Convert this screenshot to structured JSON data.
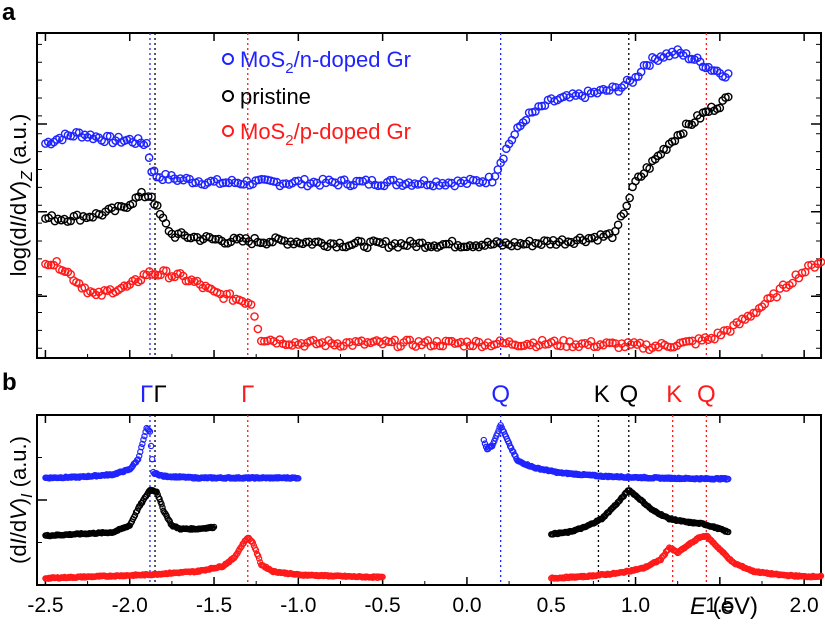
{
  "panels": {
    "a": {
      "label": "a"
    },
    "b": {
      "label": "b"
    }
  },
  "x_axis": {
    "label_italic": "E",
    "label_rest": " (eV)",
    "range": [
      -2.55,
      2.1
    ],
    "ticks": [
      -2.5,
      -2.0,
      -1.5,
      -1.0,
      -0.5,
      0.0,
      0.5,
      1.0,
      1.5,
      2.0
    ],
    "tick_labels": [
      "-2.5",
      "-2.0",
      "-1.5",
      "-1.0",
      "-0.5",
      "0.0",
      "0.5",
      "1.0",
      "1.5",
      "2.0"
    ]
  },
  "colors": {
    "n_doped": "#1f24ff",
    "pristine": "#000000",
    "p_doped": "#ff1a1a"
  },
  "chart_data": [
    {
      "type": "scatter",
      "panel": "a",
      "ylabel": "log(d/ / dV)Z (a.u.)",
      "ylabel_parts": [
        "log(d",
        "I",
        "/d",
        "V",
        ")",
        "Z",
        " (a.u.)"
      ],
      "yscale": "log",
      "ylim": [
        0,
        10
      ],
      "series": [
        {
          "name": "MoS2/n-doped Gr",
          "color": "#1f24ff",
          "points": [
            [
              -2.5,
              6.6
            ],
            [
              -2.4,
              6.8
            ],
            [
              -2.3,
              6.9
            ],
            [
              -2.2,
              6.8
            ],
            [
              -2.1,
              6.7
            ],
            [
              -2.0,
              6.7
            ],
            [
              -1.9,
              6.6
            ],
            [
              -1.87,
              5.8
            ],
            [
              -1.84,
              5.6
            ],
            [
              -1.7,
              5.5
            ],
            [
              -1.5,
              5.4
            ],
            [
              -1.2,
              5.4
            ],
            [
              -0.8,
              5.4
            ],
            [
              -0.4,
              5.4
            ],
            [
              0.0,
              5.4
            ],
            [
              0.15,
              5.5
            ],
            [
              0.25,
              6.6
            ],
            [
              0.35,
              7.4
            ],
            [
              0.5,
              7.9
            ],
            [
              0.7,
              8.1
            ],
            [
              0.9,
              8.3
            ],
            [
              1.0,
              8.6
            ],
            [
              1.05,
              9.0
            ],
            [
              1.15,
              9.3
            ],
            [
              1.25,
              9.4
            ],
            [
              1.35,
              9.2
            ],
            [
              1.45,
              8.9
            ],
            [
              1.55,
              8.7
            ]
          ]
        },
        {
          "name": "pristine",
          "color": "#000000",
          "points": [
            [
              -2.5,
              4.3
            ],
            [
              -2.35,
              4.3
            ],
            [
              -2.2,
              4.4
            ],
            [
              -2.05,
              4.6
            ],
            [
              -1.93,
              5.0
            ],
            [
              -1.87,
              5.0
            ],
            [
              -1.82,
              4.4
            ],
            [
              -1.75,
              3.8
            ],
            [
              -1.6,
              3.7
            ],
            [
              -1.4,
              3.6
            ],
            [
              -1.1,
              3.6
            ],
            [
              -0.7,
              3.5
            ],
            [
              -0.3,
              3.5
            ],
            [
              0.0,
              3.5
            ],
            [
              0.3,
              3.5
            ],
            [
              0.6,
              3.6
            ],
            [
              0.88,
              3.8
            ],
            [
              0.93,
              4.5
            ],
            [
              1.0,
              5.4
            ],
            [
              1.1,
              6.0
            ],
            [
              1.2,
              6.6
            ],
            [
              1.3,
              7.1
            ],
            [
              1.4,
              7.5
            ],
            [
              1.5,
              7.8
            ],
            [
              1.55,
              8.0
            ]
          ]
        },
        {
          "name": "MoS2/p-doped Gr",
          "color": "#ff1a1a",
          "points": [
            [
              -2.5,
              3.0
            ],
            [
              -2.4,
              2.8
            ],
            [
              -2.3,
              2.3
            ],
            [
              -2.2,
              1.9
            ],
            [
              -2.1,
              2.1
            ],
            [
              -2.0,
              2.2
            ],
            [
              -1.9,
              2.6
            ],
            [
              -1.8,
              2.6
            ],
            [
              -1.7,
              2.5
            ],
            [
              -1.6,
              2.3
            ],
            [
              -1.5,
              2.0
            ],
            [
              -1.35,
              1.8
            ],
            [
              -1.28,
              1.7
            ],
            [
              -1.22,
              0.6
            ],
            [
              -1.0,
              0.45
            ],
            [
              -0.5,
              0.45
            ],
            [
              0.0,
              0.45
            ],
            [
              0.5,
              0.45
            ],
            [
              0.9,
              0.4
            ],
            [
              1.1,
              0.35
            ],
            [
              1.3,
              0.45
            ],
            [
              1.45,
              0.6
            ],
            [
              1.6,
              1.0
            ],
            [
              1.7,
              1.4
            ],
            [
              1.8,
              1.8
            ],
            [
              1.95,
              2.5
            ],
            [
              2.1,
              3.0
            ]
          ]
        }
      ],
      "reference_lines": [
        {
          "x": -1.88,
          "color": "#1f24ff"
        },
        {
          "x": -1.85,
          "color": "#000000"
        },
        {
          "x": -1.3,
          "color": "#ff1a1a"
        },
        {
          "x": 0.2,
          "color": "#1f24ff"
        },
        {
          "x": 0.96,
          "color": "#000000"
        },
        {
          "x": 1.42,
          "color": "#ff1a1a"
        }
      ]
    },
    {
      "type": "scatter",
      "panel": "b",
      "ylabel": "(d/ / dV)I (a.u.)",
      "ylabel_parts": [
        "(d",
        "I",
        "/d",
        "V",
        ")",
        "I",
        " (a.u.)"
      ],
      "ylim": [
        0,
        10
      ],
      "series": [
        {
          "name": "MoS2/n-doped Gr",
          "color": "#1f24ff",
          "segments": [
            [
              [
                -2.5,
                6.3
              ],
              [
                -2.3,
                6.35
              ],
              [
                -2.1,
                6.5
              ],
              [
                -2.0,
                6.8
              ],
              [
                -1.95,
                7.4
              ],
              [
                -1.9,
                9.2
              ],
              [
                -1.88,
                9.0
              ],
              [
                -1.86,
                6.6
              ],
              [
                -1.8,
                6.4
              ],
              [
                -1.6,
                6.3
              ],
              [
                -1.3,
                6.3
              ],
              [
                -1.0,
                6.3
              ]
            ],
            [
              [
                0.1,
                8.5
              ],
              [
                0.12,
                8.0
              ],
              [
                0.15,
                8.2
              ],
              [
                0.2,
                9.4
              ],
              [
                0.25,
                8.3
              ],
              [
                0.3,
                7.3
              ],
              [
                0.4,
                6.9
              ],
              [
                0.55,
                6.6
              ],
              [
                0.8,
                6.4
              ],
              [
                1.1,
                6.3
              ],
              [
                1.4,
                6.25
              ],
              [
                1.55,
                6.25
              ]
            ]
          ]
        },
        {
          "name": "pristine",
          "color": "#000000",
          "segments": [
            [
              [
                -2.5,
                2.9
              ],
              [
                -2.3,
                3.0
              ],
              [
                -2.1,
                3.1
              ],
              [
                -2.0,
                3.5
              ],
              [
                -1.95,
                4.5
              ],
              [
                -1.88,
                5.6
              ],
              [
                -1.84,
                5.5
              ],
              [
                -1.8,
                4.4
              ],
              [
                -1.75,
                3.5
              ],
              [
                -1.7,
                3.3
              ],
              [
                -1.6,
                3.3
              ],
              [
                -1.5,
                3.4
              ]
            ],
            [
              [
                0.5,
                3.0
              ],
              [
                0.6,
                3.1
              ],
              [
                0.7,
                3.4
              ],
              [
                0.8,
                3.9
              ],
              [
                0.9,
                4.9
              ],
              [
                0.96,
                5.6
              ],
              [
                1.02,
                5.1
              ],
              [
                1.1,
                4.4
              ],
              [
                1.2,
                3.9
              ],
              [
                1.3,
                3.7
              ],
              [
                1.4,
                3.6
              ],
              [
                1.5,
                3.3
              ],
              [
                1.55,
                3.1
              ]
            ]
          ]
        },
        {
          "name": "MoS2/p-doped Gr",
          "color": "#ff1a1a",
          "segments": [
            [
              [
                -2.5,
                0.4
              ],
              [
                -2.2,
                0.5
              ],
              [
                -1.9,
                0.6
              ],
              [
                -1.6,
                0.8
              ],
              [
                -1.45,
                1.1
              ],
              [
                -1.38,
                1.6
              ],
              [
                -1.33,
                2.4
              ],
              [
                -1.3,
                2.8
              ],
              [
                -1.27,
                2.5
              ],
              [
                -1.22,
                1.2
              ],
              [
                -1.15,
                0.8
              ],
              [
                -1.0,
                0.6
              ],
              [
                -0.7,
                0.5
              ],
              [
                -0.5,
                0.45
              ]
            ],
            [
              [
                0.5,
                0.4
              ],
              [
                0.7,
                0.5
              ],
              [
                0.9,
                0.7
              ],
              [
                1.05,
                1.0
              ],
              [
                1.15,
                1.5
              ],
              [
                1.2,
                2.2
              ],
              [
                1.25,
                1.9
              ],
              [
                1.32,
                2.4
              ],
              [
                1.38,
                2.8
              ],
              [
                1.42,
                2.9
              ],
              [
                1.48,
                2.3
              ],
              [
                1.58,
                1.3
              ],
              [
                1.7,
                0.8
              ],
              [
                1.85,
                0.6
              ],
              [
                2.0,
                0.5
              ],
              [
                2.1,
                0.5
              ]
            ]
          ]
        }
      ],
      "reference_lines": [
        {
          "x": -1.88,
          "color": "#1f24ff"
        },
        {
          "x": -1.85,
          "color": "#000000"
        },
        {
          "x": -1.3,
          "color": "#ff1a1a"
        },
        {
          "x": 0.2,
          "color": "#1f24ff"
        },
        {
          "x": 0.78,
          "color": "#000000"
        },
        {
          "x": 0.96,
          "color": "#000000"
        },
        {
          "x": 1.22,
          "color": "#ff1a1a"
        },
        {
          "x": 1.42,
          "color": "#ff1a1a"
        }
      ],
      "annotations": [
        {
          "text": "Γ",
          "x": -1.9,
          "color": "#1f24ff"
        },
        {
          "text": "Γ",
          "x": -1.82,
          "color": "#000000"
        },
        {
          "text": "Γ",
          "x": -1.3,
          "color": "#ff1a1a"
        },
        {
          "text": "Q",
          "x": 0.2,
          "color": "#1f24ff"
        },
        {
          "text": "K",
          "x": 0.8,
          "color": "#000000"
        },
        {
          "text": "Q",
          "x": 0.96,
          "color": "#000000"
        },
        {
          "text": "K",
          "x": 1.23,
          "color": "#ff1a1a"
        },
        {
          "text": "Q",
          "x": 1.42,
          "color": "#ff1a1a"
        }
      ]
    }
  ],
  "legend": [
    {
      "prefix": "MoS",
      "sub": "2",
      "suffix": "/n-doped Gr",
      "color": "#1f24ff"
    },
    {
      "prefix": "pristine",
      "sub": "",
      "suffix": "",
      "color": "#000000"
    },
    {
      "prefix": "MoS",
      "sub": "2",
      "suffix": "/p-doped Gr",
      "color": "#ff1a1a"
    }
  ]
}
